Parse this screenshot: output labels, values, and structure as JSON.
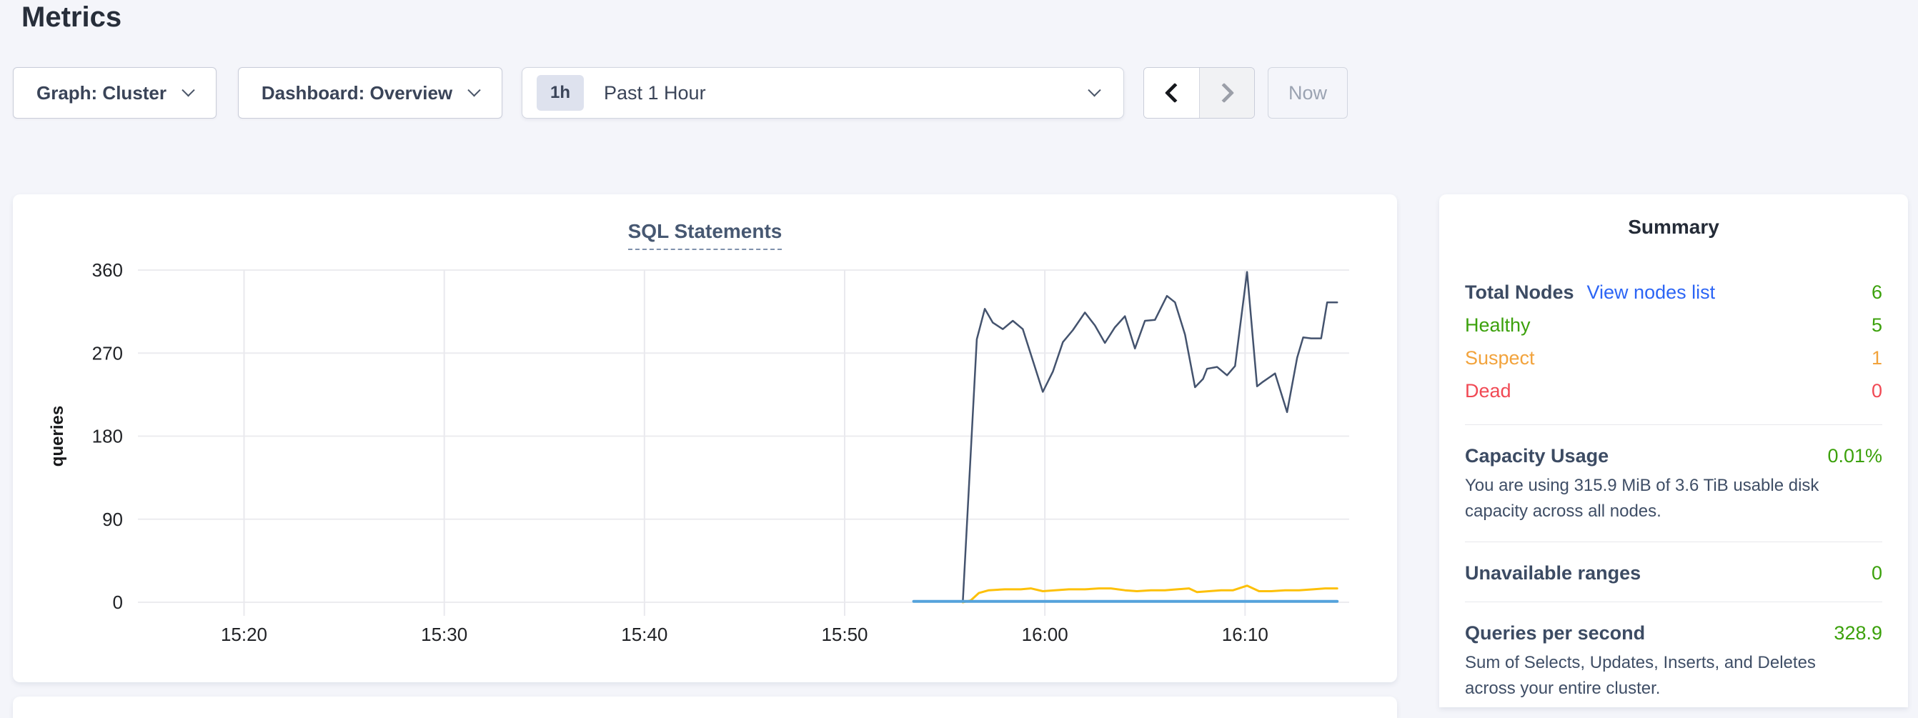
{
  "page": {
    "title": "Metrics"
  },
  "controls": {
    "graph_dropdown": "Graph: Cluster",
    "dashboard_dropdown": "Dashboard: Overview",
    "time_badge": "1h",
    "time_label": "Past 1 Hour",
    "now_button": "Now"
  },
  "chart_data": {
    "type": "line",
    "title": "SQL Statements",
    "ylabel": "queries",
    "x_unit": "minutes after 15:00",
    "xlim": [
      14.7,
      75.2
    ],
    "ylim": [
      0,
      360
    ],
    "grid": true,
    "legend": "none",
    "x_ticks": [
      {
        "v": 20,
        "label": "15:20"
      },
      {
        "v": 30,
        "label": "15:30"
      },
      {
        "v": 40,
        "label": "15:40"
      },
      {
        "v": 50,
        "label": "15:50"
      },
      {
        "v": 60,
        "label": "16:00"
      },
      {
        "v": 70,
        "label": "16:10"
      }
    ],
    "y_ticks": [
      {
        "v": 0,
        "label": "0"
      },
      {
        "v": 90,
        "label": "90"
      },
      {
        "v": 180,
        "label": "180"
      },
      {
        "v": 270,
        "label": "270"
      },
      {
        "v": 360,
        "label": "360"
      }
    ],
    "series": [
      {
        "name": "dark-blue-line",
        "color": "#44536e",
        "width": 2.5,
        "points": [
          [
            55.9,
            0
          ],
          [
            56.6,
            285
          ],
          [
            57.0,
            318
          ],
          [
            57.4,
            303
          ],
          [
            57.9,
            296
          ],
          [
            58.4,
            305
          ],
          [
            58.9,
            296
          ],
          [
            59.4,
            262
          ],
          [
            59.9,
            228
          ],
          [
            60.4,
            250
          ],
          [
            60.9,
            282
          ],
          [
            61.4,
            295
          ],
          [
            62.0,
            314
          ],
          [
            62.5,
            300
          ],
          [
            63.0,
            281
          ],
          [
            63.5,
            298
          ],
          [
            64.0,
            310
          ],
          [
            64.5,
            275
          ],
          [
            65.0,
            305
          ],
          [
            65.5,
            306
          ],
          [
            66.1,
            332
          ],
          [
            66.5,
            325
          ],
          [
            67.0,
            290
          ],
          [
            67.5,
            233
          ],
          [
            67.9,
            242
          ],
          [
            68.1,
            253
          ],
          [
            68.6,
            255
          ],
          [
            69.1,
            246
          ],
          [
            69.5,
            256
          ],
          [
            70.1,
            358
          ],
          [
            70.6,
            234
          ],
          [
            70.9,
            239
          ],
          [
            71.5,
            248
          ],
          [
            72.1,
            206
          ],
          [
            72.6,
            265
          ],
          [
            72.9,
            287
          ],
          [
            73.3,
            286
          ],
          [
            73.8,
            286
          ],
          [
            74.1,
            325
          ],
          [
            74.6,
            325
          ]
        ]
      },
      {
        "name": "yellow-line",
        "color": "#fdc008",
        "width": 3,
        "points": [
          [
            55.9,
            0
          ],
          [
            56.3,
            2
          ],
          [
            56.7,
            10
          ],
          [
            57.2,
            13
          ],
          [
            58.0,
            14
          ],
          [
            58.8,
            14
          ],
          [
            59.3,
            15
          ],
          [
            59.9,
            12
          ],
          [
            60.5,
            13
          ],
          [
            61.2,
            14
          ],
          [
            62.0,
            14
          ],
          [
            62.7,
            15
          ],
          [
            63.3,
            15
          ],
          [
            64.0,
            13
          ],
          [
            64.6,
            12
          ],
          [
            65.3,
            13
          ],
          [
            66.0,
            13
          ],
          [
            66.6,
            14
          ],
          [
            67.2,
            15
          ],
          [
            67.6,
            11
          ],
          [
            68.2,
            12
          ],
          [
            68.8,
            13
          ],
          [
            69.4,
            13
          ],
          [
            70.1,
            18
          ],
          [
            70.7,
            12
          ],
          [
            71.3,
            12
          ],
          [
            72.0,
            13
          ],
          [
            72.7,
            13
          ],
          [
            73.4,
            14
          ],
          [
            74.0,
            15
          ],
          [
            74.6,
            15
          ]
        ]
      },
      {
        "name": "light-blue-line",
        "color": "#55a3dc",
        "width": 4,
        "points": [
          [
            53.45,
            1
          ],
          [
            74.6,
            1
          ]
        ]
      }
    ]
  },
  "summary": {
    "title": "Summary",
    "rows": [
      {
        "label": "Total Nodes",
        "link": "View nodes list",
        "value": "6"
      },
      {
        "label": "Healthy",
        "value": "5"
      },
      {
        "label": "Suspect",
        "value": "1"
      },
      {
        "label": "Dead",
        "value": "0"
      }
    ],
    "sections": [
      {
        "label": "Capacity Usage",
        "value": "0.01%",
        "desc": "You are using 315.9 MiB of 3.6 TiB usable disk capacity across all nodes."
      },
      {
        "label": "Unavailable ranges",
        "value": "0",
        "desc": ""
      },
      {
        "label": "Queries per second",
        "value": "328.9",
        "desc": "Sum of Selects, Updates, Inserts, and Deletes across your entire cluster."
      }
    ],
    "colors": {
      "green": "#3ca10c",
      "orange": "#f2a33c",
      "red": "#f14954",
      "link": "#2c65f5"
    }
  }
}
